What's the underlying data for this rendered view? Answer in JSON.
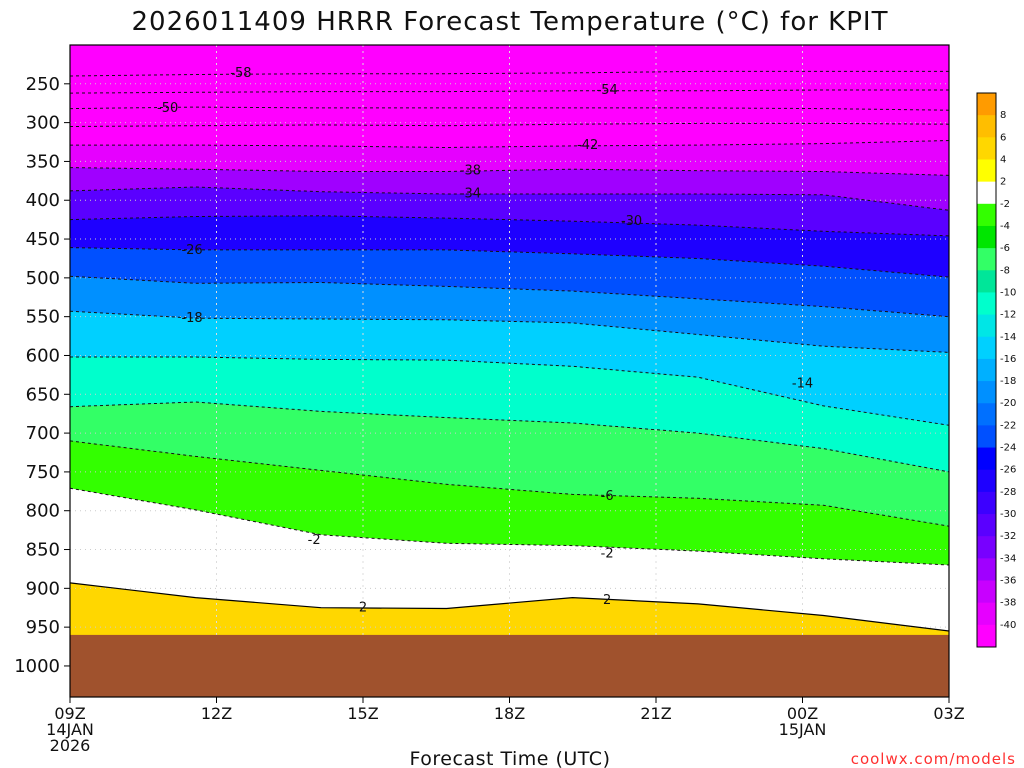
{
  "chart_data": {
    "type": "heatmap",
    "title": "2026011409 HRRR Forecast Temperature (°C) for KPIT",
    "xlabel": "Forecast Time (UTC)",
    "ylabel": "",
    "x_ticks": [
      {
        "hour": 0,
        "label": "09Z",
        "sub": [
          "14JAN",
          "2026"
        ]
      },
      {
        "hour": 3,
        "label": "12Z",
        "sub": []
      },
      {
        "hour": 6,
        "label": "15Z",
        "sub": []
      },
      {
        "hour": 9,
        "label": "18Z",
        "sub": []
      },
      {
        "hour": 12,
        "label": "21Z",
        "sub": []
      },
      {
        "hour": 15,
        "label": "00Z",
        "sub": [
          "15JAN"
        ]
      },
      {
        "hour": 18,
        "label": "03Z",
        "sub": []
      }
    ],
    "xlim": [
      0,
      18
    ],
    "y_ticks": [
      250,
      300,
      350,
      400,
      450,
      500,
      550,
      600,
      650,
      700,
      750,
      800,
      850,
      900,
      950,
      1000
    ],
    "ylim_hPa": [
      200,
      1040
    ],
    "surface_pressure_hPa": 960,
    "grid": true,
    "colorbar": {
      "ticks": [
        8,
        6,
        4,
        2,
        -2,
        -4,
        -6,
        -8,
        -10,
        -12,
        -14,
        -16,
        -18,
        -20,
        -22,
        -24,
        -26,
        -28,
        -30,
        -32,
        -34,
        -36,
        -38,
        -40
      ],
      "colors": [
        "#ff9b00",
        "#ffbe00",
        "#ffd700",
        "#ffff00",
        "#ffffff",
        "#33ff00",
        "#00e600",
        "#33ff66",
        "#00e699",
        "#00ffcc",
        "#00e6e6",
        "#00d0ff",
        "#00b0ff",
        "#0090ff",
        "#0070ff",
        "#0050ff",
        "#0000ff",
        "#1e00ff",
        "#3c00ff",
        "#5a00ff",
        "#7800ff",
        "#a000ff",
        "#c800ff",
        "#e600ff",
        "#ff00ff"
      ]
    },
    "isotherms": [
      {
        "value": -58,
        "label_hour": 3.5,
        "pressures": [
          240,
          238,
          237,
          237,
          236,
          234,
          234,
          234
        ]
      },
      {
        "value": -54,
        "label_hour": 11.0,
        "pressures": [
          262,
          261,
          260,
          260,
          259,
          259,
          258,
          258
        ]
      },
      {
        "value": -50,
        "label_hour": 2.0,
        "pressures": [
          282,
          280,
          281,
          281,
          281,
          281,
          282,
          284
        ]
      },
      {
        "value": -46,
        "label_hour": null,
        "pressures": [
          305,
          304,
          303,
          304,
          302,
          301,
          301,
          302
        ]
      },
      {
        "value": -42,
        "label_hour": 10.6,
        "pressures": [
          329,
          329,
          330,
          332,
          330,
          329,
          327,
          323
        ]
      },
      {
        "value": -38,
        "label_hour": 8.2,
        "pressures": [
          358,
          360,
          363,
          363,
          360,
          362,
          363,
          368
        ]
      },
      {
        "value": -34,
        "label_hour": 8.2,
        "pressures": [
          388,
          383,
          389,
          392,
          392,
          392,
          393,
          413
        ]
      },
      {
        "value": -30,
        "label_hour": 11.5,
        "pressures": [
          425,
          421,
          420,
          423,
          427,
          432,
          440,
          446
        ]
      },
      {
        "value": -26,
        "label_hour": 2.5,
        "pressures": [
          461,
          464,
          464,
          464,
          469,
          475,
          485,
          499
        ]
      },
      {
        "value": -22,
        "label_hour": null,
        "pressures": [
          498,
          507,
          506,
          511,
          517,
          527,
          537,
          550
        ]
      },
      {
        "value": -18,
        "label_hour": 2.5,
        "pressures": [
          543,
          552,
          553,
          554,
          558,
          573,
          588,
          596
        ]
      },
      {
        "value": -14,
        "label_hour": 15.0,
        "pressures": [
          602,
          602,
          605,
          606,
          614,
          628,
          665,
          690
        ]
      },
      {
        "value": -10,
        "label_hour": null,
        "pressures": [
          666,
          660,
          672,
          680,
          687,
          700,
          720,
          750
        ]
      },
      {
        "value": -6,
        "label_hour": 11.0,
        "pressures": [
          710,
          730,
          748,
          766,
          779,
          784,
          793,
          820
        ]
      },
      {
        "value": -2,
        "label_hour": 5.0,
        "pressures": [
          771,
          799,
          831,
          842,
          845,
          852,
          862,
          870
        ]
      },
      {
        "value": 2,
        "label_hour": 6.0,
        "pressures": [
          893,
          912,
          925,
          926,
          912,
          920,
          935,
          955
        ]
      }
    ],
    "annotation_labels": [
      {
        "text": "-58",
        "hour": 3.5,
        "p": 236
      },
      {
        "text": "-54",
        "hour": 11.0,
        "p": 258
      },
      {
        "text": "-50",
        "hour": 2.0,
        "p": 281
      },
      {
        "text": "-42",
        "hour": 10.6,
        "p": 329
      },
      {
        "text": "-38",
        "hour": 8.2,
        "p": 362
      },
      {
        "text": "-34",
        "hour": 8.2,
        "p": 391
      },
      {
        "text": "-30",
        "hour": 11.5,
        "p": 427
      },
      {
        "text": "-26",
        "hour": 2.5,
        "p": 464
      },
      {
        "text": "-18",
        "hour": 2.5,
        "p": 552
      },
      {
        "text": "-14",
        "hour": 15.0,
        "p": 636
      },
      {
        "text": "-6",
        "hour": 11.0,
        "p": 781
      },
      {
        "text": "-2",
        "hour": 5.0,
        "p": 838
      },
      {
        "text": "-2",
        "hour": 11.0,
        "p": 855
      },
      {
        "text": "2",
        "hour": 6.0,
        "p": 925
      },
      {
        "text": "2",
        "hour": 11.0,
        "p": 915
      }
    ]
  },
  "credit": "coolwx.com/models"
}
